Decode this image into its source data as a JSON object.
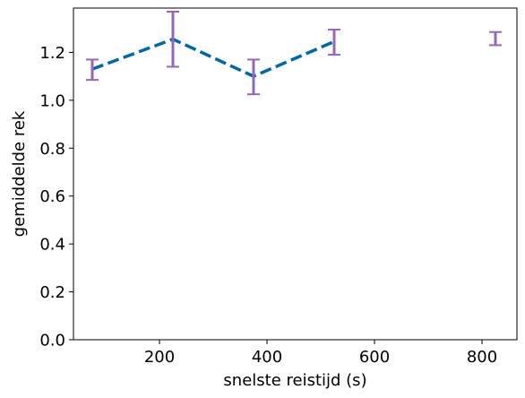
{
  "chart_data": {
    "type": "line",
    "title": "",
    "xlabel": "snelste reistijd (s)",
    "ylabel": "gemiddelde rek",
    "xlim": [
      40,
      865
    ],
    "ylim": [
      0.0,
      1.385
    ],
    "xticks": [
      200,
      400,
      600,
      800
    ],
    "yticks": [
      0.0,
      0.2,
      0.4,
      0.6,
      0.8,
      1.0,
      1.2
    ],
    "xtick_labels": [
      "200",
      "400",
      "600",
      "800"
    ],
    "ytick_labels": [
      "0.0",
      "0.2",
      "0.4",
      "0.6",
      "0.8",
      "1.0",
      "1.2"
    ],
    "grid": false,
    "legend": "none",
    "series": [
      {
        "style": "dashed-line",
        "color": "#0068a5",
        "x": [
          75,
          225,
          375,
          525
        ],
        "y": [
          1.13,
          1.255,
          1.1,
          1.245
        ]
      }
    ],
    "errorbars": {
      "color": "#9467bd",
      "points": [
        {
          "x": 75,
          "y": 1.13,
          "low": 1.085,
          "high": 1.17
        },
        {
          "x": 225,
          "y": 1.255,
          "low": 1.14,
          "high": 1.37
        },
        {
          "x": 375,
          "y": 1.1,
          "low": 1.025,
          "high": 1.17
        },
        {
          "x": 525,
          "y": 1.245,
          "low": 1.19,
          "high": 1.295
        },
        {
          "x": 825,
          "y": 1.255,
          "low": 1.23,
          "high": 1.285
        }
      ]
    }
  }
}
